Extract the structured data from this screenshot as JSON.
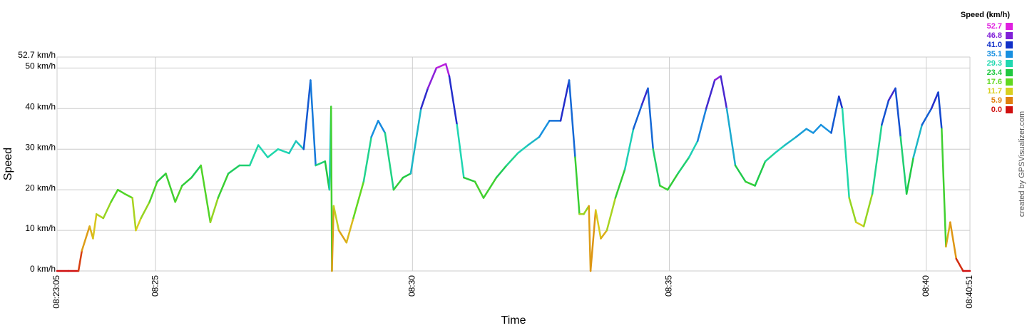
{
  "chart_data": {
    "type": "line",
    "xlabel": "Time",
    "ylabel": "Speed",
    "x": [
      "08:23:05",
      "08:23:18",
      "08:23:30",
      "08:23:34",
      "08:23:43",
      "08:23:47",
      "08:23:51",
      "08:23:59",
      "08:24:08",
      "08:24:16",
      "08:24:24",
      "08:24:33",
      "08:24:37",
      "08:24:43",
      "08:24:53",
      "08:25:02",
      "08:25:12",
      "08:25:23",
      "08:25:31",
      "08:25:42",
      "08:25:53",
      "08:26:04",
      "08:26:13",
      "08:26:25",
      "08:26:38",
      "08:26:50",
      "08:27:00",
      "08:27:11",
      "08:27:23",
      "08:27:36",
      "08:27:44",
      "08:27:53",
      "08:28:01",
      "08:28:07",
      "08:28:18",
      "08:28:23",
      "08:28:25",
      "08:28:26",
      "08:28:28",
      "08:28:34",
      "08:28:43",
      "08:28:51",
      "08:29:03",
      "08:29:12",
      "08:29:20",
      "08:29:28",
      "08:29:38",
      "08:29:49",
      "08:29:58",
      "08:30:10",
      "08:30:18",
      "08:30:28",
      "08:30:39",
      "08:30:43",
      "08:30:52",
      "08:31:00",
      "08:31:13",
      "08:31:23",
      "08:31:38",
      "08:31:50",
      "08:32:03",
      "08:32:15",
      "08:32:28",
      "08:32:40",
      "08:32:53",
      "08:33:03",
      "08:33:10",
      "08:33:15",
      "08:33:20",
      "08:33:26",
      "08:33:28",
      "08:33:34",
      "08:33:40",
      "08:33:47",
      "08:33:57",
      "08:34:08",
      "08:34:18",
      "08:34:28",
      "08:34:35",
      "08:34:41",
      "08:34:49",
      "08:34:58",
      "08:35:10",
      "08:35:23",
      "08:35:33",
      "08:35:43",
      "08:35:53",
      "08:36:00",
      "08:36:07",
      "08:36:17",
      "08:36:29",
      "08:36:40",
      "08:36:52",
      "08:37:03",
      "08:37:15",
      "08:37:28",
      "08:37:40",
      "08:37:48",
      "08:37:57",
      "08:38:09",
      "08:38:18",
      "08:38:22",
      "08:38:30",
      "08:38:38",
      "08:38:47",
      "08:38:57",
      "08:39:08",
      "08:39:16",
      "08:39:24",
      "08:39:30",
      "08:39:37",
      "08:39:45",
      "08:39:55",
      "08:40:06",
      "08:40:14",
      "08:40:18",
      "08:40:23",
      "08:40:28",
      "08:40:35",
      "08:40:43",
      "08:40:51"
    ],
    "values": [
      0,
      0,
      0,
      5,
      11,
      8,
      14,
      13,
      17,
      20,
      19,
      18,
      10,
      13,
      17,
      22,
      24,
      17,
      21,
      23,
      26,
      12,
      18,
      24,
      26,
      26,
      31,
      28,
      30,
      29,
      32,
      30,
      47,
      26,
      27,
      20,
      40.5,
      0,
      16,
      10,
      7,
      13,
      22,
      33,
      37,
      34,
      20,
      23,
      24,
      40,
      45,
      50,
      51,
      48,
      36,
      23,
      22,
      18,
      23,
      26,
      29,
      31,
      33,
      37,
      37,
      47,
      28,
      14,
      14,
      16,
      0,
      15,
      8,
      10,
      18,
      25,
      35,
      41,
      45,
      30,
      21,
      20,
      24,
      28,
      32,
      40,
      47,
      48,
      40,
      26,
      22,
      21,
      27,
      29,
      31,
      33,
      35,
      34,
      36,
      34,
      43,
      40,
      18,
      12,
      11,
      19,
      36,
      42,
      45,
      33,
      19,
      28,
      36,
      40,
      44,
      35,
      6,
      12,
      3,
      0,
      0
    ],
    "xlim": [
      "08:23:05",
      "08:40:51"
    ],
    "xticks": [
      "08:23:05",
      "08:25",
      "08:30",
      "08:35",
      "08:40",
      "08:40:51"
    ],
    "ylim": [
      0,
      52.7
    ],
    "yticks": [
      {
        "value": 0,
        "label": "0 km/h"
      },
      {
        "value": 10,
        "label": "10 km/h"
      },
      {
        "value": 20,
        "label": "20 km/h"
      },
      {
        "value": 30,
        "label": "30 km/h"
      },
      {
        "value": 40,
        "label": "40 km/h"
      },
      {
        "value": 50,
        "label": "50 km/h"
      },
      {
        "value": 52.7,
        "label": "52.7 km/h"
      }
    ],
    "grid": true,
    "legend": {
      "title": "Speed (km/h)",
      "position": "top-right",
      "values": [
        52.7,
        46.8,
        41.0,
        35.1,
        29.3,
        23.4,
        17.6,
        11.7,
        5.9,
        0.0
      ],
      "value_labels": [
        "52.7",
        "46.8",
        "41.0",
        "35.1",
        "29.3",
        "23.4",
        "17.6",
        "11.7",
        "5.9",
        "0.0"
      ],
      "colors": [
        "#e020e0",
        "#8020d8",
        "#1030c8",
        "#1890e0",
        "#20d8b0",
        "#20c840",
        "#60d820",
        "#d8d020",
        "#e08010",
        "#d01010"
      ]
    }
  },
  "credit": "created by GPSVisualizer.com"
}
